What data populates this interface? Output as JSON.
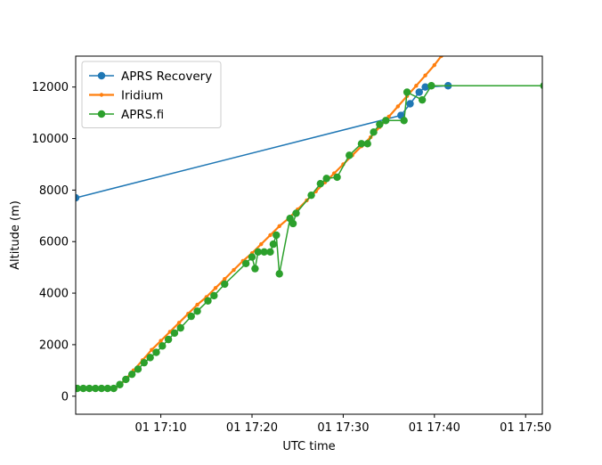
{
  "chart_data": {
    "type": "line",
    "xlabel": "UTC time",
    "ylabel": "Altitude (m)",
    "xlim": [
      "17:00:40",
      "17:51:50"
    ],
    "ylim": [
      -700,
      13200
    ],
    "x_ticks": [
      {
        "t": "17:10",
        "label": "01 17:10"
      },
      {
        "t": "17:20",
        "label": "01 17:20"
      },
      {
        "t": "17:30",
        "label": "01 17:30"
      },
      {
        "t": "17:40",
        "label": "01 17:40"
      },
      {
        "t": "17:50",
        "label": "01 17:50"
      }
    ],
    "y_ticks": [
      0,
      2000,
      4000,
      6000,
      8000,
      10000,
      12000
    ],
    "grid": false,
    "legend_position": "top-left",
    "series": [
      {
        "name": "APRS Recovery",
        "color": "#1f77b4",
        "marker": "circle",
        "points": [
          [
            "17:00:40",
            7700
          ],
          [
            "17:36:20",
            10900
          ],
          [
            "17:37:20",
            11350
          ],
          [
            "17:38:20",
            11800
          ],
          [
            "17:39:00",
            12000
          ],
          [
            "17:41:30",
            12050
          ]
        ]
      },
      {
        "name": "Iridium",
        "color": "#ff7f0e",
        "marker": "small-dot",
        "points": [
          [
            "17:05:00",
            300
          ],
          [
            "17:06:00",
            600
          ],
          [
            "17:07:00",
            1000
          ],
          [
            "17:08:00",
            1400
          ],
          [
            "17:09:00",
            1800
          ],
          [
            "17:10:00",
            2150
          ],
          [
            "17:11:00",
            2500
          ],
          [
            "17:12:00",
            2850
          ],
          [
            "17:13:00",
            3200
          ],
          [
            "17:14:00",
            3550
          ],
          [
            "17:15:00",
            3850
          ],
          [
            "17:16:00",
            4200
          ],
          [
            "17:17:00",
            4550
          ],
          [
            "17:18:00",
            4900
          ],
          [
            "17:19:00",
            5250
          ],
          [
            "17:20:00",
            5550
          ],
          [
            "17:21:00",
            5900
          ],
          [
            "17:22:00",
            6250
          ],
          [
            "17:23:00",
            6600
          ],
          [
            "17:24:00",
            6900
          ],
          [
            "17:25:00",
            7250
          ],
          [
            "17:26:00",
            7600
          ],
          [
            "17:27:00",
            7950
          ],
          [
            "17:28:00",
            8300
          ],
          [
            "17:29:00",
            8650
          ],
          [
            "17:30:00",
            9000
          ],
          [
            "17:31:00",
            9350
          ],
          [
            "17:32:00",
            9700
          ],
          [
            "17:33:00",
            10050
          ],
          [
            "17:34:00",
            10450
          ],
          [
            "17:35:00",
            10850
          ],
          [
            "17:36:00",
            11250
          ],
          [
            "17:37:00",
            11650
          ],
          [
            "17:38:00",
            12050
          ],
          [
            "17:39:00",
            12450
          ],
          [
            "17:40:00",
            12850
          ],
          [
            "17:40:45",
            13200
          ]
        ]
      },
      {
        "name": "APRS.fi",
        "color": "#2ca02c",
        "marker": "circle",
        "points": [
          [
            "17:00:10",
            300
          ],
          [
            "17:00:50",
            300
          ],
          [
            "17:01:30",
            300
          ],
          [
            "17:02:10",
            300
          ],
          [
            "17:02:50",
            300
          ],
          [
            "17:03:30",
            300
          ],
          [
            "17:04:10",
            300
          ],
          [
            "17:04:50",
            300
          ],
          [
            "17:05:30",
            450
          ],
          [
            "17:06:10",
            650
          ],
          [
            "17:06:50",
            850
          ],
          [
            "17:07:30",
            1050
          ],
          [
            "17:08:10",
            1300
          ],
          [
            "17:08:50",
            1500
          ],
          [
            "17:09:30",
            1700
          ],
          [
            "17:10:10",
            1950
          ],
          [
            "17:10:50",
            2200
          ],
          [
            "17:11:30",
            2450
          ],
          [
            "17:12:10",
            2650
          ],
          [
            "17:13:20",
            3100
          ],
          [
            "17:14:00",
            3300
          ],
          [
            "17:15:10",
            3700
          ],
          [
            "17:15:50",
            3900
          ],
          [
            "17:17:00",
            4350
          ],
          [
            "17:19:20",
            5150
          ],
          [
            "17:20:00",
            5400
          ],
          [
            "17:20:20",
            4950
          ],
          [
            "17:20:40",
            5600
          ],
          [
            "17:21:20",
            5600
          ],
          [
            "17:22:00",
            5600
          ],
          [
            "17:22:20",
            5900
          ],
          [
            "17:22:40",
            6250
          ],
          [
            "17:23:00",
            4750
          ],
          [
            "17:24:10",
            6900
          ],
          [
            "17:24:30",
            6700
          ],
          [
            "17:24:50",
            7100
          ],
          [
            "17:26:30",
            7800
          ],
          [
            "17:27:30",
            8250
          ],
          [
            "17:28:10",
            8450
          ],
          [
            "17:29:20",
            8500
          ],
          [
            "17:30:40",
            9350
          ],
          [
            "17:32:00",
            9800
          ],
          [
            "17:32:40",
            9800
          ],
          [
            "17:33:20",
            10250
          ],
          [
            "17:34:00",
            10550
          ],
          [
            "17:34:40",
            10700
          ],
          [
            "17:36:40",
            10700
          ],
          [
            "17:37:00",
            11800
          ],
          [
            "17:38:40",
            11500
          ],
          [
            "17:39:40",
            12050
          ],
          [
            "17:52:00",
            12050
          ]
        ]
      }
    ]
  }
}
